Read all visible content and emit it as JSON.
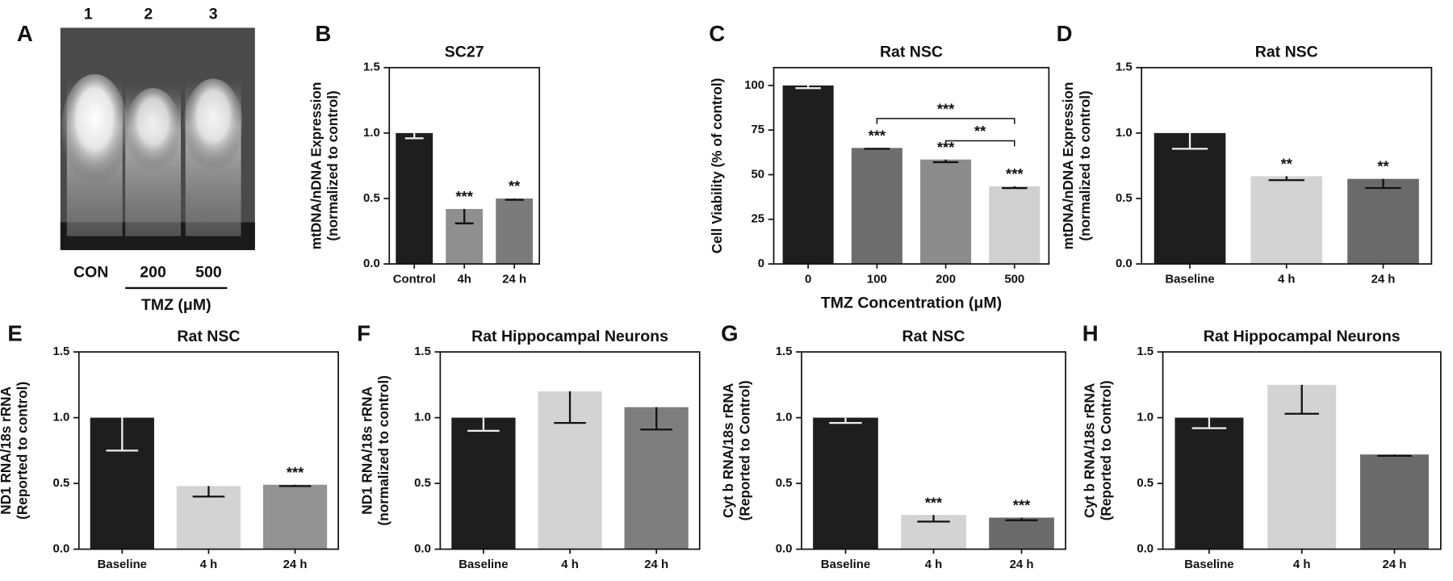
{
  "gel": {
    "label": "A",
    "lanes": [
      "1",
      "2",
      "3"
    ],
    "samples": [
      "CON",
      "200",
      "500"
    ],
    "xlabel": "TMZ (μM)"
  },
  "chart_data": [
    {
      "type": "bar",
      "label": "B",
      "title": "SC27",
      "ylabel": [
        "mtDNA/nDNA Expression",
        "(normalized to control)"
      ],
      "categories": [
        "Control",
        "4h",
        "24 h"
      ],
      "values": [
        1.0,
        0.42,
        0.5
      ],
      "errors": [
        0.04,
        0.11,
        0.01
      ],
      "colors": [
        "#1e1e1e",
        "#8f8f8f",
        "#7b7b7b"
      ],
      "significance": [
        null,
        "***",
        "**"
      ],
      "ylim": [
        0,
        1.5
      ],
      "yticks": [
        {
          "value": 0,
          "label": "0.0"
        },
        {
          "value": 0.5,
          "label": "0.5"
        },
        {
          "value": 1,
          "label": "1.0"
        },
        {
          "value": 1.5,
          "label": "1.5"
        }
      ]
    },
    {
      "type": "bar",
      "label": "C",
      "title": "Rat NSC",
      "ylabel": [
        "Cell Viability (% of control)"
      ],
      "xlabel": "TMZ Concentration (μM)",
      "categories": [
        "0",
        "100",
        "200",
        "500"
      ],
      "values": [
        100,
        65,
        58.5,
        43.5
      ],
      "errors": [
        1.5,
        0.5,
        1.5,
        1
      ],
      "colors": [
        "#1e1e1e",
        "#6e6e6e",
        "#8c8c8c",
        "#d0d0d0"
      ],
      "significance": [
        null,
        "***",
        "***",
        "***"
      ],
      "brackets": [
        "***",
        "**"
      ],
      "ylim": [
        0,
        110
      ],
      "yticks": [
        0,
        25,
        50,
        75,
        100
      ]
    },
    {
      "type": "bar",
      "label": "D",
      "title": "Rat NSC",
      "ylabel": [
        "mtDNA/nDNA Expression",
        "(normalized to control)"
      ],
      "categories": [
        "Baseline",
        "4 h",
        "24 h"
      ],
      "values": [
        1.0,
        0.67,
        0.65
      ],
      "errors": [
        0.12,
        0.03,
        0.07
      ],
      "colors": [
        "#1e1e1e",
        "#d3d3d3",
        "#6a6a6a"
      ],
      "significance": [
        null,
        "**",
        "**"
      ],
      "ylim": [
        0,
        1.5
      ],
      "yticks": [
        {
          "value": 0,
          "label": "0.0"
        },
        {
          "value": 0.5,
          "label": "0.5"
        },
        {
          "value": 1,
          "label": "1.0"
        },
        {
          "value": 1.5,
          "label": "1.5"
        }
      ]
    },
    {
      "type": "bar",
      "label": "E",
      "title": "Rat NSC",
      "ylabel": [
        "ND1 RNA/18s rRNA",
        "(Reported to control)"
      ],
      "categories": [
        "Baseline",
        "4 h",
        "24 h"
      ],
      "values": [
        1.0,
        0.48,
        0.49
      ],
      "errors": [
        0.25,
        0.08,
        0.01
      ],
      "colors": [
        "#1e1e1e",
        "#d3d3d3",
        "#939393"
      ],
      "significance": [
        null,
        null,
        "***"
      ],
      "ylim": [
        0,
        1.5
      ],
      "yticks": [
        {
          "value": 0,
          "label": "0.0"
        },
        {
          "value": 0.5,
          "label": "0.5"
        },
        {
          "value": 1,
          "label": "1.0"
        },
        {
          "value": 1.5,
          "label": "1.5"
        }
      ]
    },
    {
      "type": "bar",
      "label": "F",
      "title": "Rat Hippocampal Neurons",
      "ylabel": [
        "ND1 RNA/18s rRNA",
        "(normalized to control)"
      ],
      "categories": [
        "Baseline",
        "4 h",
        "24 h"
      ],
      "values": [
        1.0,
        1.2,
        1.08
      ],
      "errors": [
        0.1,
        0.24,
        0.17
      ],
      "colors": [
        "#1e1e1e",
        "#d3d3d3",
        "#7e7e7e"
      ],
      "significance": [
        null,
        null,
        null
      ],
      "ylim": [
        0,
        1.5
      ],
      "yticks": [
        {
          "value": 0,
          "label": "0.0"
        },
        {
          "value": 0.5,
          "label": "0.5"
        },
        {
          "value": 1,
          "label": "1.0"
        },
        {
          "value": 1.5,
          "label": "1.5"
        }
      ]
    },
    {
      "type": "bar",
      "label": "G",
      "title": "Rat NSC",
      "ylabel": [
        "Cyt b RNA/18s rRNA",
        "(Reported to Control)"
      ],
      "categories": [
        "Baseline",
        "4 h",
        "24 h"
      ],
      "values": [
        1.0,
        0.26,
        0.24
      ],
      "errors": [
        0.04,
        0.05,
        0.02
      ],
      "colors": [
        "#1e1e1e",
        "#d3d3d3",
        "#6a6a6a"
      ],
      "significance": [
        null,
        "***",
        "***"
      ],
      "ylim": [
        0,
        1.5
      ],
      "yticks": [
        {
          "value": 0,
          "label": "0.0"
        },
        {
          "value": 0.5,
          "label": "0.5"
        },
        {
          "value": 1,
          "label": "1.0"
        },
        {
          "value": 1.5,
          "label": "1.5"
        }
      ]
    },
    {
      "type": "bar",
      "label": "H",
      "title": "Rat Hippocampal  Neurons",
      "ylabel": [
        "Cyt b RNA/18s rRNA",
        "(Reported to Control)"
      ],
      "categories": [
        "Baseline",
        "4 h",
        "24 h"
      ],
      "values": [
        1.0,
        1.25,
        0.72
      ],
      "errors": [
        0.08,
        0.22,
        0.01
      ],
      "colors": [
        "#1e1e1e",
        "#d3d3d3",
        "#6a6a6a"
      ],
      "significance": [
        null,
        null,
        null
      ],
      "ylim": [
        0,
        1.5
      ],
      "yticks": [
        {
          "value": 0,
          "label": "0.0"
        },
        {
          "value": 0.5,
          "label": "0.5"
        },
        {
          "value": 1,
          "label": "1.0"
        },
        {
          "value": 1.5,
          "label": "1.5"
        }
      ]
    }
  ]
}
